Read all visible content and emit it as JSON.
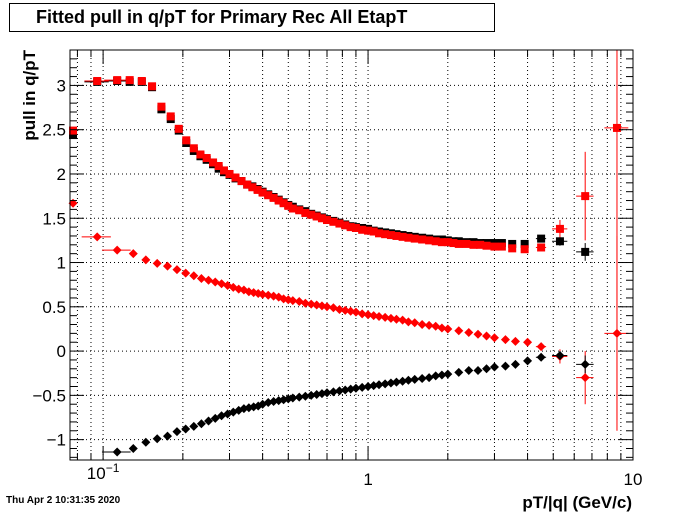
{
  "timestamp": "Thu Apr  2 10:31:35 2020",
  "chart_data": {
    "type": "scatter",
    "title": "Fitted pull in q/pT for Primary Rec All EtapT",
    "xlabel": "pT/|q| (GeV/c)",
    "ylabel": "pull in q/pT",
    "xscale": "log",
    "xlim": [
      0.075,
      10
    ],
    "ylim": [
      -1.23,
      3.4
    ],
    "grid": true,
    "x_ticks": [
      {
        "v": 0.1,
        "base": "10",
        "exp": "−1"
      },
      {
        "v": 1,
        "label": "1"
      },
      {
        "v": 10,
        "label": "10"
      }
    ],
    "y_ticks": [
      {
        "v": -1,
        "label": "−1"
      },
      {
        "v": -0.5,
        "label": "−0.5"
      },
      {
        "v": 0,
        "label": "0"
      },
      {
        "v": 0.5,
        "label": "0.5"
      },
      {
        "v": 1,
        "label": "1"
      },
      {
        "v": 1.5,
        "label": "1.5"
      },
      {
        "v": 2,
        "label": "2"
      },
      {
        "v": 2.5,
        "label": "2.5"
      },
      {
        "v": 3,
        "label": "3"
      }
    ],
    "series": [
      {
        "marker": "square",
        "color": "#000000",
        "x": [
          0.077,
          0.095,
          0.113,
          0.126,
          0.14,
          0.153,
          0.166,
          0.18,
          0.193,
          0.206,
          0.22,
          0.233,
          0.246,
          0.26,
          0.273,
          0.286,
          0.3,
          0.316,
          0.333,
          0.35,
          0.366,
          0.383,
          0.4,
          0.42,
          0.44,
          0.46,
          0.48,
          0.5,
          0.52,
          0.55,
          0.58,
          0.61,
          0.64,
          0.67,
          0.7,
          0.74,
          0.78,
          0.82,
          0.86,
          0.9,
          0.95,
          1.0,
          1.05,
          1.1,
          1.16,
          1.22,
          1.28,
          1.35,
          1.42,
          1.5,
          1.6,
          1.7,
          1.8,
          1.9,
          2.0,
          2.1,
          2.2,
          2.35,
          2.5,
          2.65,
          2.8,
          3.0,
          3.2,
          3.5,
          3.9,
          4.5,
          5.3,
          6.6
        ],
        "y": [
          2.44,
          3.04,
          3.05,
          3.04,
          3.04,
          2.98,
          2.73,
          2.62,
          2.49,
          2.35,
          2.26,
          2.2,
          2.16,
          2.11,
          2.06,
          2.02,
          1.99,
          1.95,
          1.92,
          1.88,
          1.86,
          1.83,
          1.8,
          1.77,
          1.74,
          1.71,
          1.68,
          1.65,
          1.63,
          1.6,
          1.58,
          1.55,
          1.53,
          1.51,
          1.49,
          1.47,
          1.45,
          1.43,
          1.41,
          1.4,
          1.39,
          1.38,
          1.36,
          1.35,
          1.34,
          1.33,
          1.32,
          1.31,
          1.3,
          1.29,
          1.28,
          1.27,
          1.26,
          1.26,
          1.25,
          1.24,
          1.24,
          1.23,
          1.23,
          1.22,
          1.22,
          1.22,
          1.22,
          1.21,
          1.21,
          1.27,
          1.24,
          1.12
        ],
        "ex": [
          0,
          0.01,
          0.012,
          0,
          0,
          0,
          0,
          0,
          0,
          0,
          0,
          0,
          0,
          0,
          0,
          0,
          0,
          0,
          0,
          0,
          0,
          0,
          0,
          0,
          0,
          0,
          0,
          0,
          0,
          0,
          0,
          0,
          0,
          0,
          0,
          0,
          0,
          0,
          0,
          0,
          0,
          0,
          0,
          0,
          0,
          0,
          0,
          0,
          0,
          0,
          0,
          0,
          0,
          0,
          0,
          0,
          0,
          0,
          0,
          0,
          0,
          0,
          0,
          0,
          0,
          0.2,
          0.35,
          0.5
        ],
        "ey": [
          0,
          0,
          0,
          0,
          0,
          0,
          0,
          0,
          0,
          0,
          0,
          0,
          0,
          0,
          0,
          0,
          0,
          0,
          0,
          0,
          0,
          0,
          0,
          0,
          0,
          0,
          0,
          0,
          0,
          0,
          0,
          0,
          0,
          0,
          0,
          0,
          0,
          0,
          0,
          0,
          0,
          0,
          0,
          0,
          0,
          0,
          0,
          0,
          0,
          0,
          0,
          0,
          0,
          0,
          0,
          0,
          0,
          0,
          0,
          0,
          0,
          0,
          0,
          0,
          0,
          0,
          0.05,
          0.1
        ]
      },
      {
        "marker": "square",
        "color": "#ff0000",
        "x": [
          0.077,
          0.095,
          0.113,
          0.126,
          0.14,
          0.153,
          0.166,
          0.18,
          0.193,
          0.206,
          0.22,
          0.233,
          0.246,
          0.26,
          0.273,
          0.286,
          0.3,
          0.316,
          0.333,
          0.35,
          0.366,
          0.383,
          0.4,
          0.42,
          0.44,
          0.46,
          0.48,
          0.5,
          0.52,
          0.55,
          0.58,
          0.61,
          0.64,
          0.67,
          0.7,
          0.74,
          0.78,
          0.82,
          0.86,
          0.9,
          0.95,
          1.0,
          1.05,
          1.1,
          1.16,
          1.22,
          1.28,
          1.35,
          1.42,
          1.5,
          1.6,
          1.7,
          1.8,
          1.9,
          2.0,
          2.1,
          2.2,
          2.35,
          2.5,
          2.65,
          2.8,
          3.0,
          3.2,
          3.5,
          3.9,
          4.5,
          5.3,
          6.6,
          8.7
        ],
        "y": [
          2.49,
          3.05,
          3.06,
          3.06,
          3.05,
          2.99,
          2.76,
          2.65,
          2.51,
          2.38,
          2.29,
          2.22,
          2.18,
          2.13,
          2.09,
          2.04,
          2.0,
          1.96,
          1.92,
          1.88,
          1.85,
          1.82,
          1.79,
          1.76,
          1.73,
          1.7,
          1.67,
          1.64,
          1.61,
          1.59,
          1.56,
          1.54,
          1.52,
          1.5,
          1.48,
          1.46,
          1.44,
          1.42,
          1.4,
          1.39,
          1.37,
          1.36,
          1.35,
          1.33,
          1.32,
          1.31,
          1.3,
          1.29,
          1.28,
          1.27,
          1.26,
          1.25,
          1.24,
          1.23,
          1.23,
          1.22,
          1.21,
          1.21,
          1.2,
          1.2,
          1.19,
          1.18,
          1.18,
          1.16,
          1.15,
          1.17,
          1.38,
          1.75,
          2.52
        ],
        "ex": [
          0,
          0.01,
          0.012,
          0,
          0,
          0,
          0,
          0,
          0,
          0,
          0,
          0,
          0,
          0,
          0,
          0,
          0,
          0,
          0,
          0,
          0,
          0,
          0,
          0,
          0,
          0,
          0,
          0,
          0,
          0,
          0,
          0,
          0,
          0,
          0,
          0,
          0,
          0,
          0,
          0,
          0,
          0,
          0,
          0,
          0,
          0,
          0,
          0,
          0,
          0,
          0,
          0,
          0,
          0,
          0,
          0,
          0,
          0,
          0,
          0,
          0,
          0,
          0,
          0,
          0,
          0.2,
          0.35,
          0.5,
          0.9
        ],
        "ey": [
          0,
          0,
          0,
          0,
          0,
          0,
          0,
          0,
          0,
          0,
          0,
          0,
          0,
          0,
          0,
          0,
          0,
          0,
          0,
          0,
          0,
          0,
          0,
          0,
          0,
          0,
          0,
          0,
          0,
          0,
          0,
          0,
          0,
          0,
          0,
          0,
          0,
          0,
          0,
          0,
          0,
          0,
          0,
          0,
          0,
          0,
          0,
          0,
          0,
          0,
          0,
          0,
          0,
          0,
          0,
          0,
          0,
          0,
          0,
          0,
          0,
          0,
          0,
          0,
          0,
          0,
          0.1,
          0.5,
          3.3
        ]
      },
      {
        "marker": "diamond",
        "color": "#ff0000",
        "x": [
          0.077,
          0.095,
          0.113,
          0.13,
          0.145,
          0.16,
          0.175,
          0.19,
          0.205,
          0.22,
          0.235,
          0.25,
          0.265,
          0.28,
          0.295,
          0.31,
          0.325,
          0.34,
          0.355,
          0.37,
          0.385,
          0.4,
          0.42,
          0.44,
          0.46,
          0.48,
          0.5,
          0.52,
          0.55,
          0.58,
          0.61,
          0.64,
          0.67,
          0.7,
          0.74,
          0.78,
          0.82,
          0.86,
          0.9,
          0.95,
          1.0,
          1.05,
          1.1,
          1.16,
          1.22,
          1.28,
          1.35,
          1.42,
          1.5,
          1.6,
          1.7,
          1.8,
          1.9,
          2.0,
          2.2,
          2.4,
          2.6,
          2.8,
          3.0,
          3.3,
          3.6,
          4.0,
          4.5,
          5.3,
          6.6,
          8.7
        ],
        "y": [
          1.67,
          1.29,
          1.14,
          1.1,
          1.03,
          0.99,
          0.96,
          0.92,
          0.88,
          0.85,
          0.82,
          0.8,
          0.78,
          0.76,
          0.74,
          0.72,
          0.7,
          0.69,
          0.67,
          0.66,
          0.65,
          0.64,
          0.63,
          0.62,
          0.61,
          0.59,
          0.58,
          0.57,
          0.56,
          0.54,
          0.53,
          0.52,
          0.51,
          0.5,
          0.49,
          0.47,
          0.46,
          0.45,
          0.44,
          0.42,
          0.41,
          0.4,
          0.39,
          0.38,
          0.37,
          0.36,
          0.35,
          0.33,
          0.32,
          0.3,
          0.29,
          0.28,
          0.26,
          0.25,
          0.23,
          0.21,
          0.19,
          0.17,
          0.15,
          0.13,
          0.11,
          0.1,
          0.05,
          -0.06,
          -0.3,
          0.2
        ],
        "ex": [
          0,
          0.012,
          0.014,
          0,
          0,
          0,
          0,
          0,
          0,
          0,
          0,
          0,
          0,
          0,
          0,
          0,
          0,
          0,
          0,
          0,
          0,
          0,
          0,
          0,
          0,
          0,
          0,
          0,
          0,
          0,
          0,
          0,
          0,
          0,
          0,
          0,
          0,
          0,
          0,
          0,
          0,
          0,
          0,
          0,
          0,
          0,
          0,
          0,
          0,
          0,
          0,
          0,
          0,
          0,
          0,
          0,
          0,
          0,
          0,
          0,
          0,
          0,
          0.2,
          0.35,
          0.5,
          0.9
        ],
        "ey": [
          0,
          0,
          0,
          0,
          0,
          0,
          0,
          0,
          0,
          0,
          0,
          0,
          0,
          0,
          0,
          0,
          0,
          0,
          0,
          0,
          0,
          0,
          0,
          0,
          0,
          0,
          0,
          0,
          0,
          0,
          0,
          0,
          0,
          0,
          0,
          0,
          0,
          0,
          0,
          0,
          0,
          0,
          0,
          0,
          0,
          0,
          0,
          0,
          0,
          0,
          0,
          0,
          0,
          0,
          0,
          0,
          0,
          0,
          0,
          0,
          0,
          0,
          0,
          0.08,
          0.3,
          1.1
        ]
      },
      {
        "marker": "diamond",
        "color": "#000000",
        "x": [
          0.113,
          0.13,
          0.145,
          0.16,
          0.175,
          0.19,
          0.205,
          0.22,
          0.235,
          0.25,
          0.265,
          0.28,
          0.295,
          0.31,
          0.325,
          0.34,
          0.355,
          0.37,
          0.385,
          0.4,
          0.42,
          0.44,
          0.46,
          0.48,
          0.5,
          0.52,
          0.55,
          0.58,
          0.61,
          0.64,
          0.67,
          0.7,
          0.74,
          0.78,
          0.82,
          0.86,
          0.9,
          0.95,
          1.0,
          1.05,
          1.1,
          1.16,
          1.22,
          1.28,
          1.35,
          1.42,
          1.5,
          1.6,
          1.7,
          1.8,
          1.9,
          2.0,
          2.2,
          2.4,
          2.6,
          2.8,
          3.0,
          3.3,
          3.6,
          4.0,
          4.5,
          5.3,
          6.6
        ],
        "y": [
          -1.14,
          -1.1,
          -1.03,
          -0.99,
          -0.96,
          -0.91,
          -0.88,
          -0.85,
          -0.82,
          -0.79,
          -0.76,
          -0.73,
          -0.71,
          -0.69,
          -0.67,
          -0.65,
          -0.64,
          -0.63,
          -0.62,
          -0.6,
          -0.58,
          -0.57,
          -0.56,
          -0.55,
          -0.54,
          -0.53,
          -0.52,
          -0.51,
          -0.5,
          -0.49,
          -0.48,
          -0.47,
          -0.46,
          -0.45,
          -0.44,
          -0.43,
          -0.42,
          -0.41,
          -0.4,
          -0.39,
          -0.38,
          -0.37,
          -0.36,
          -0.35,
          -0.34,
          -0.33,
          -0.32,
          -0.31,
          -0.3,
          -0.28,
          -0.27,
          -0.26,
          -0.24,
          -0.22,
          -0.22,
          -0.2,
          -0.18,
          -0.17,
          -0.15,
          -0.11,
          -0.07,
          -0.05,
          -0.15
        ],
        "ex": [
          0.014,
          0,
          0,
          0,
          0,
          0,
          0,
          0,
          0,
          0,
          0,
          0,
          0,
          0,
          0,
          0,
          0,
          0,
          0,
          0,
          0,
          0,
          0,
          0,
          0,
          0,
          0,
          0,
          0,
          0,
          0,
          0,
          0,
          0,
          0,
          0,
          0,
          0,
          0,
          0,
          0,
          0,
          0,
          0,
          0,
          0,
          0,
          0,
          0,
          0,
          0,
          0,
          0,
          0,
          0,
          0,
          0,
          0,
          0,
          0,
          0.2,
          0.35,
          0.5
        ],
        "ey": [
          0,
          0,
          0,
          0,
          0,
          0,
          0,
          0,
          0,
          0,
          0,
          0,
          0,
          0,
          0,
          0,
          0,
          0,
          0,
          0,
          0,
          0,
          0,
          0,
          0,
          0,
          0,
          0,
          0,
          0,
          0,
          0,
          0,
          0,
          0,
          0,
          0,
          0,
          0,
          0,
          0,
          0,
          0,
          0,
          0,
          0,
          0,
          0,
          0,
          0,
          0,
          0,
          0,
          0,
          0,
          0,
          0,
          0,
          0,
          0,
          0,
          0.05,
          0.1
        ]
      }
    ]
  }
}
